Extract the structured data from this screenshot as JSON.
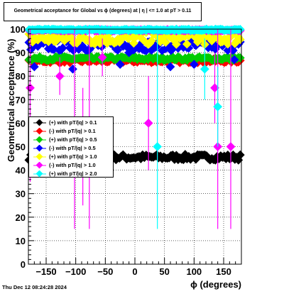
{
  "title": "Geometrical acceptance for Global vs ϕ (degrees) at |  η  | <= 1.0 at pT > 0.11",
  "footer_timestamp": "Thu Dec 12 08:24:28 2024",
  "chart_data": {
    "type": "scatter",
    "xlabel": "ϕ (degrees)",
    "ylabel": "Geometrical acceptance (%)",
    "xlim": [
      -180,
      180
    ],
    "ylim": [
      0,
      100
    ],
    "x_ticks": [
      -150,
      -100,
      -50,
      0,
      50,
      100,
      150
    ],
    "y_ticks": [
      0,
      10,
      20,
      30,
      40,
      50,
      60,
      70,
      80,
      90,
      100
    ],
    "grid": true,
    "legend_placement": "left-middle",
    "series": [
      {
        "name": "(+) with pT/|q| > 0.1",
        "color": "#000000",
        "level": 45.5,
        "spread": 1.2,
        "outliers": []
      },
      {
        "name": "(-) with pT/|q| > 0.1",
        "color": "#ff0000",
        "level": 86.5,
        "spread": 0.8,
        "outliers": []
      },
      {
        "name": "(+) with pT/|q| > 0.5",
        "color": "#00cc00",
        "level": 87.5,
        "spread": 0.8,
        "outliers": []
      },
      {
        "name": "(-) with pT/|q| > 0.5",
        "color": "#0000ff",
        "level": 93,
        "spread": 2.2,
        "outliers": [
          [
            -170,
            84
          ],
          [
            -105,
            83
          ],
          [
            -25,
            85
          ],
          [
            -10,
            90
          ],
          [
            60,
            84
          ],
          [
            100,
            85
          ],
          [
            168,
            87
          ]
        ]
      },
      {
        "name": "(+) with pT/|q| > 1.0",
        "color": "#ffff00",
        "level": 96,
        "spread": 2.6,
        "outliers": []
      },
      {
        "name": "(-) with pT/|q| > 1.0",
        "color": "#ff00ff",
        "level": 99.5,
        "spread": 0.3,
        "outliers": [
          [
            -177,
            75,
            35,
            100
          ],
          [
            -127,
            80,
            72,
            88
          ],
          [
            -102,
            50,
            15,
            100
          ],
          [
            -88,
            50,
            25,
            75
          ],
          [
            -77,
            50,
            15,
            100
          ],
          [
            23,
            60,
            40,
            80
          ],
          [
            135,
            75,
            60,
            90
          ],
          [
            140,
            50,
            15,
            100
          ],
          [
            162,
            50,
            15,
            100
          ],
          [
            -55,
            88,
            80,
            96
          ]
        ]
      },
      {
        "name": "(+) with pT/|q| > 2.0",
        "color": "#00ffff",
        "level": 99.7,
        "spread": 0.3,
        "outliers": [
          [
            38,
            50,
            15,
            100
          ],
          [
            118,
            83,
            70,
            96
          ],
          [
            140,
            67,
            50,
            84
          ]
        ]
      }
    ]
  }
}
